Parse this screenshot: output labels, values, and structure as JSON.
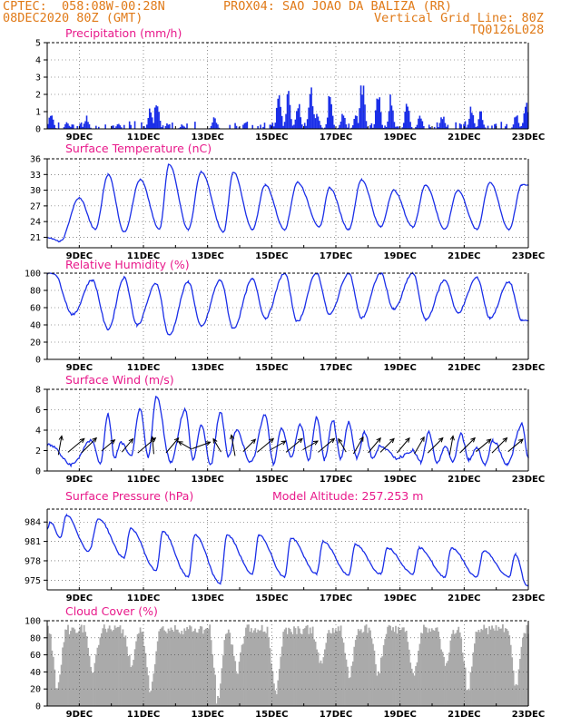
{
  "header": {
    "line1_left": "CPTEC:  058:08W-00:28N",
    "line1_right": "PROX04: SAO JOAO DA BALIZA (RR)",
    "line2_left": "08DEC2020 80Z (GMT)",
    "line2_right": "Vertical Grid Line: 80Z",
    "line3_right": "TQ0126L028"
  },
  "x_tick_labels": [
    "9DEC",
    "11DEC",
    "13DEC",
    "15DEC",
    "17DEC",
    "19DEC",
    "21DEC",
    "23DEC"
  ],
  "chart_data": [
    {
      "type": "bar",
      "title": "Precipitation (mm/h)",
      "ylim": [
        0,
        5
      ],
      "yticks": [
        0,
        1,
        2,
        3,
        4,
        5
      ],
      "grid": true,
      "color": "#1a2ee8",
      "x_range_days": [
        8.0,
        23.0
      ],
      "approx_bursts": [
        {
          "day": 8.1,
          "peak": 1.2
        },
        {
          "day": 8.6,
          "peak": 0.5
        },
        {
          "day": 9.2,
          "peak": 0.8
        },
        {
          "day": 10.2,
          "peak": 0.3
        },
        {
          "day": 11.2,
          "peak": 1.4
        },
        {
          "day": 11.4,
          "peak": 2.2
        },
        {
          "day": 12.2,
          "peak": 0.3
        },
        {
          "day": 13.2,
          "peak": 0.8
        },
        {
          "day": 15.2,
          "peak": 2.7
        },
        {
          "day": 15.5,
          "peak": 2.4
        },
        {
          "day": 15.8,
          "peak": 1.8
        },
        {
          "day": 16.2,
          "peak": 3.0
        },
        {
          "day": 16.4,
          "peak": 1.2
        },
        {
          "day": 16.8,
          "peak": 2.5
        },
        {
          "day": 17.2,
          "peak": 1.2
        },
        {
          "day": 17.6,
          "peak": 1.0
        },
        {
          "day": 17.8,
          "peak": 3.3
        },
        {
          "day": 18.3,
          "peak": 2.6
        },
        {
          "day": 18.7,
          "peak": 2.2
        },
        {
          "day": 19.2,
          "peak": 1.8
        },
        {
          "day": 19.6,
          "peak": 1.0
        },
        {
          "day": 20.3,
          "peak": 0.9
        },
        {
          "day": 21.2,
          "peak": 1.4
        },
        {
          "day": 21.5,
          "peak": 1.2
        },
        {
          "day": 22.6,
          "peak": 1.0
        },
        {
          "day": 22.9,
          "peak": 1.8
        }
      ]
    },
    {
      "type": "line",
      "title": "Surface Temperature (nC)",
      "ylim": [
        19,
        36
      ],
      "yticks": [
        21,
        24,
        27,
        30,
        33,
        36
      ],
      "grid": true,
      "color": "#1a2ee8",
      "approx_daily": {
        "min_days": [
          8.4,
          9.5,
          10.4,
          11.5,
          12.4,
          13.5,
          14.4,
          15.4,
          16.5,
          17.4,
          18.4,
          19.4,
          20.4,
          21.4,
          22.4
        ],
        "min_vals": [
          20.2,
          22.5,
          22.0,
          22.5,
          22.5,
          22.0,
          22.5,
          22.5,
          23.0,
          22.5,
          23.0,
          23.0,
          22.5,
          22.5,
          22.5
        ],
        "max_days": [
          9.0,
          9.9,
          10.9,
          11.8,
          12.8,
          13.8,
          14.8,
          15.8,
          16.8,
          17.8,
          18.8,
          19.8,
          20.8,
          21.8,
          22.8
        ],
        "max_vals": [
          28.5,
          33.0,
          32.0,
          35.0,
          33.5,
          33.5,
          31.0,
          31.5,
          30.5,
          32.0,
          30.0,
          31.0,
          30.0,
          31.5,
          31.0
        ]
      }
    },
    {
      "type": "line",
      "title": "Relative Humidity (%)",
      "ylim": [
        0,
        100
      ],
      "yticks": [
        0,
        20,
        40,
        60,
        80,
        100
      ],
      "grid": true,
      "color": "#1a2ee8",
      "approx_daily": {
        "max_days": [
          8.2,
          9.4,
          10.4,
          11.4,
          12.4,
          13.4,
          14.4,
          15.4,
          16.4,
          17.4,
          18.4,
          19.4,
          20.4,
          21.4,
          22.4
        ],
        "max_vals": [
          100,
          92,
          95,
          88,
          90,
          92,
          93,
          100,
          100,
          100,
          100,
          100,
          92,
          95,
          90
        ],
        "min_days": [
          8.8,
          9.9,
          10.8,
          11.8,
          12.8,
          13.8,
          14.8,
          15.8,
          16.8,
          17.8,
          18.8,
          19.8,
          20.8,
          21.8,
          22.8
        ],
        "min_vals": [
          52,
          35,
          40,
          28,
          38,
          36,
          48,
          44,
          52,
          48,
          58,
          46,
          54,
          48,
          45
        ]
      }
    },
    {
      "type": "line",
      "title": "Surface Wind (m/s)",
      "ylim": [
        0,
        8
      ],
      "yticks": [
        0,
        2,
        4,
        6,
        8
      ],
      "grid": true,
      "color": "#1a2ee8",
      "approx_peaks_days": [
        8.1,
        9.4,
        9.9,
        10.3,
        10.9,
        11.4,
        12.3,
        12.8,
        13.4,
        13.9,
        14.8,
        15.3,
        15.9,
        16.4,
        16.9,
        17.4,
        17.9,
        18.4,
        19.4,
        19.9,
        20.4,
        20.9,
        21.4,
        21.9,
        22.8
      ],
      "approx_peaks_vals": [
        2.5,
        3.0,
        5.5,
        2.8,
        6.0,
        7.3,
        6.0,
        4.5,
        5.8,
        4.0,
        5.5,
        4.2,
        4.6,
        5.2,
        5.0,
        4.8,
        3.8,
        2.5,
        2.0,
        3.8,
        2.4,
        3.6,
        2.3,
        3.0,
        4.6
      ],
      "wind_arrows": [
        {
          "day": 8.4,
          "dir_deg": 80,
          "len": 0.6
        },
        {
          "day": 8.9,
          "dir_deg": 40,
          "len": 0.7
        },
        {
          "day": 9.3,
          "dir_deg": 45,
          "len": 0.7
        },
        {
          "day": 9.9,
          "dir_deg": 40,
          "len": 0.5
        },
        {
          "day": 10.5,
          "dir_deg": 50,
          "len": 0.5
        },
        {
          "day": 11.1,
          "dir_deg": 40,
          "len": 0.8
        },
        {
          "day": 11.3,
          "dir_deg": 95,
          "len": 0.5
        },
        {
          "day": 11.9,
          "dir_deg": 50,
          "len": 0.6
        },
        {
          "day": 12.3,
          "dir_deg": 150,
          "len": 0.4
        },
        {
          "day": 12.8,
          "dir_deg": 20,
          "len": 0.6
        },
        {
          "day": 13.3,
          "dir_deg": 120,
          "len": 0.4
        },
        {
          "day": 13.8,
          "dir_deg": 100,
          "len": 0.7
        },
        {
          "day": 14.3,
          "dir_deg": 45,
          "len": 0.5
        },
        {
          "day": 14.8,
          "dir_deg": 40,
          "len": 0.7
        },
        {
          "day": 15.2,
          "dir_deg": 30,
          "len": 0.5
        },
        {
          "day": 15.7,
          "dir_deg": 40,
          "len": 0.7
        },
        {
          "day": 16.2,
          "dir_deg": 30,
          "len": 0.5
        },
        {
          "day": 16.7,
          "dir_deg": 40,
          "len": 0.7
        },
        {
          "day": 17.2,
          "dir_deg": 120,
          "len": 0.4
        },
        {
          "day": 17.7,
          "dir_deg": 60,
          "len": 0.6
        },
        {
          "day": 18.2,
          "dir_deg": 50,
          "len": 0.6
        },
        {
          "day": 18.6,
          "dir_deg": 45,
          "len": 0.6
        },
        {
          "day": 19.1,
          "dir_deg": 50,
          "len": 0.6
        },
        {
          "day": 19.6,
          "dir_deg": 60,
          "len": 0.6
        },
        {
          "day": 20.1,
          "dir_deg": 45,
          "len": 0.7
        },
        {
          "day": 20.6,
          "dir_deg": 80,
          "len": 0.6
        },
        {
          "day": 21.1,
          "dir_deg": 45,
          "len": 0.7
        },
        {
          "day": 21.6,
          "dir_deg": 40,
          "len": 0.6
        },
        {
          "day": 22.1,
          "dir_deg": 45,
          "len": 0.7
        },
        {
          "day": 22.6,
          "dir_deg": 40,
          "len": 0.6
        }
      ]
    },
    {
      "type": "line",
      "title": "Surface Pressure (hPa)",
      "annotation": "Model Altitude: 257.253 m",
      "ylim": [
        973.5,
        986
      ],
      "yticks": [
        975,
        978,
        981,
        984
      ],
      "grid": true,
      "color": "#1a2ee8",
      "approx_daily": {
        "max_days": [
          8.1,
          8.6,
          9.6,
          10.6,
          11.6,
          12.6,
          13.6,
          14.6,
          15.6,
          16.6,
          17.6,
          18.6,
          19.6,
          20.6,
          21.6,
          22.6
        ],
        "max_vals": [
          984,
          985,
          984.5,
          983,
          982.5,
          982,
          982,
          982,
          981.5,
          981,
          980.5,
          980,
          980,
          980,
          979.5,
          979
        ],
        "min_days": [
          8.4,
          9.3,
          10.4,
          11.4,
          12.4,
          13.4,
          14.4,
          15.4,
          16.4,
          17.4,
          18.4,
          19.4,
          20.4,
          21.4,
          22.4,
          22.95
        ],
        "min_vals": [
          981.5,
          979.5,
          978.5,
          976.5,
          975.5,
          974.5,
          976,
          975.5,
          976,
          975.8,
          976,
          976,
          975.5,
          975.5,
          975.5,
          974.2
        ]
      }
    },
    {
      "type": "area",
      "title": "Cloud Cover (%)",
      "ylim": [
        0,
        100
      ],
      "yticks": [
        0,
        20,
        40,
        60,
        80,
        100
      ],
      "grid": true,
      "color": "#aaaaaa",
      "approx_typical_percent": 90,
      "approx_dips": [
        {
          "day": 8.3,
          "val": 20
        },
        {
          "day": 9.4,
          "val": 35
        },
        {
          "day": 10.6,
          "val": 45
        },
        {
          "day": 11.2,
          "val": 10
        },
        {
          "day": 13.3,
          "val": 2
        },
        {
          "day": 13.9,
          "val": 35
        },
        {
          "day": 15.1,
          "val": 10
        },
        {
          "day": 16.5,
          "val": 45
        },
        {
          "day": 17.4,
          "val": 30
        },
        {
          "day": 18.3,
          "val": 35
        },
        {
          "day": 19.4,
          "val": 30
        },
        {
          "day": 20.4,
          "val": 45
        },
        {
          "day": 21.1,
          "val": 15
        },
        {
          "day": 22.6,
          "val": 20
        }
      ]
    }
  ]
}
